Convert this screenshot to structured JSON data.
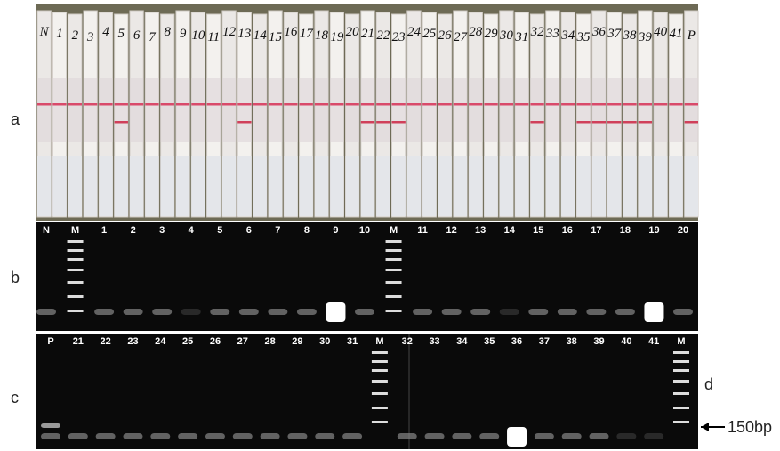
{
  "panels": {
    "a": {
      "label": "a",
      "strip_labels": [
        "N",
        "1",
        "2",
        "3",
        "4",
        "5",
        "6",
        "7",
        "8",
        "9",
        "10",
        "11",
        "12",
        "13",
        "14",
        "15",
        "16",
        "17",
        "18",
        "19",
        "20",
        "21",
        "22",
        "23",
        "24",
        "25",
        "26",
        "27",
        "28",
        "29",
        "30",
        "31",
        "32",
        "33",
        "34",
        "35",
        "36",
        "37",
        "38",
        "39",
        "40",
        "41",
        "P"
      ]
    },
    "b": {
      "label": "b",
      "lanes": [
        "N",
        "M",
        "1",
        "2",
        "3",
        "4",
        "5",
        "6",
        "7",
        "8",
        "9",
        "10",
        "M",
        "11",
        "12",
        "13",
        "14",
        "15",
        "16",
        "17",
        "18",
        "19",
        "20"
      ]
    },
    "c": {
      "label": "c",
      "lanes": [
        "P",
        "21",
        "22",
        "23",
        "24",
        "25",
        "26",
        "27",
        "28",
        "29",
        "30",
        "31",
        "M",
        "32",
        "33",
        "34",
        "35",
        "36",
        "37",
        "38",
        "39",
        "40",
        "41",
        "M"
      ],
      "ladder_label": "d",
      "marker": "150bp"
    }
  }
}
